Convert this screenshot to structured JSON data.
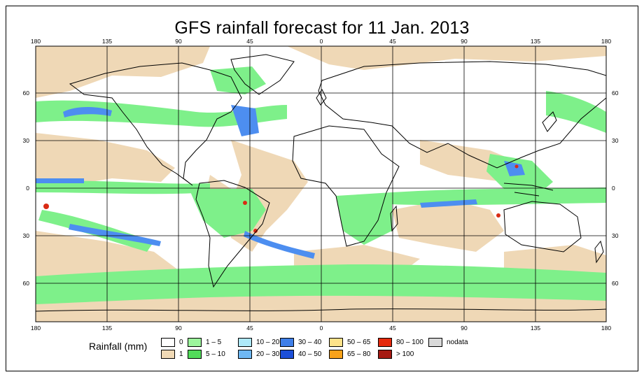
{
  "title": "GFS rainfall forecast for 11 Jan. 2013",
  "map": {
    "projection": "equirectangular",
    "lon_ticks": [
      "180",
      "135",
      "90",
      "45",
      "0",
      "45",
      "90",
      "135",
      "180"
    ],
    "lat_ticks": [
      "60",
      "30",
      "0",
      "30",
      "60"
    ],
    "colors": {
      "ocean_land_no_rain": "#ffffff",
      "light_rain": "#efd8b6",
      "green": "#7ef08a",
      "light_blue": "#8fd8f5",
      "blue": "#4d8ef0",
      "red": "#d92b14",
      "coast": "#000000",
      "grid": "#000000"
    }
  },
  "legend": {
    "title": "Rainfall (mm)",
    "items": [
      {
        "label": "0",
        "color": "#ffffff"
      },
      {
        "label": "1",
        "color": "#f0d9b5"
      },
      {
        "label": "1 – 5",
        "color": "#9cf49c"
      },
      {
        "label": "5 – 10",
        "color": "#52dc5a"
      },
      {
        "label": "10 – 20",
        "color": "#aee8f8"
      },
      {
        "label": "20 – 30",
        "color": "#6fb8f4"
      },
      {
        "label": "30 – 40",
        "color": "#3f7fe8"
      },
      {
        "label": "40 – 50",
        "color": "#1c4fd8"
      },
      {
        "label": "50 – 65",
        "color": "#fde28a"
      },
      {
        "label": "65 – 80",
        "color": "#f9a21a"
      },
      {
        "label": "80 – 100",
        "color": "#e52a0e"
      },
      {
        "label": "> 100",
        "color": "#a61a12"
      },
      {
        "label": "nodata",
        "color": "#d9d9d9"
      }
    ]
  }
}
